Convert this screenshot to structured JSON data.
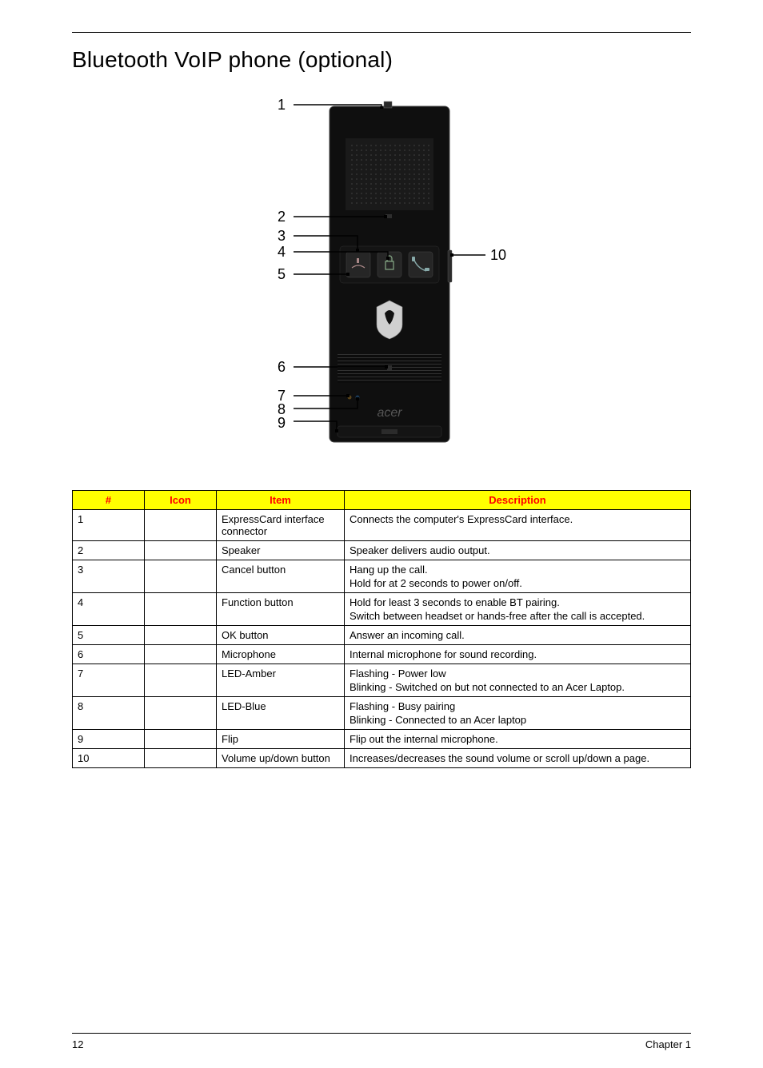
{
  "page_title": "Bluetooth VoIP phone (optional)",
  "footer": {
    "page_number": "12",
    "chapter": "Chapter 1"
  },
  "diagram": {
    "labels": [
      "1",
      "2",
      "3",
      "4",
      "5",
      "6",
      "7",
      "8",
      "9"
    ],
    "right_label": "10",
    "colors": {
      "device_body": "#0f0f0f",
      "device_border": "#404040",
      "speaker_fill": "#1a1a1a",
      "button_fill": "#262626",
      "badge_fill": "#d0d0d0",
      "badge_stroke": "#888888",
      "logo_text": "#555555",
      "line": "#000000",
      "label_text": "#000000"
    },
    "label_font_size": 18
  },
  "table": {
    "headers": {
      "num": "#",
      "icon": "Icon",
      "item": "Item",
      "desc": "Description"
    },
    "rows": [
      {
        "num": "1",
        "item": "ExpressCard interface connector",
        "desc": [
          "Connects the computer's ExpressCard interface."
        ]
      },
      {
        "num": "2",
        "item": "Speaker",
        "desc": [
          "Speaker delivers audio output."
        ]
      },
      {
        "num": "3",
        "item": "Cancel button",
        "desc": [
          "Hang up the call.",
          "Hold for at 2 seconds to power on/off."
        ]
      },
      {
        "num": "4",
        "item": "Function button",
        "desc": [
          "Hold for least 3 seconds to enable BT pairing.",
          "Switch between headset or hands-free after the call is accepted."
        ]
      },
      {
        "num": "5",
        "item": "OK button",
        "desc": [
          "Answer an incoming call."
        ]
      },
      {
        "num": "6",
        "item": "Microphone",
        "desc": [
          "Internal microphone for sound recording."
        ]
      },
      {
        "num": "7",
        "item": "LED-Amber",
        "desc": [
          "Flashing - Power low",
          "Blinking - Switched on but not connected to an Acer Laptop."
        ]
      },
      {
        "num": "8",
        "item": "LED-Blue",
        "desc": [
          "Flashing - Busy pairing",
          "Blinking - Connected to an Acer laptop"
        ]
      },
      {
        "num": "9",
        "item": "Flip",
        "desc": [
          "Flip out the internal microphone."
        ]
      },
      {
        "num": "10",
        "item": "Volume up/down button",
        "desc": [
          "Increases/decreases the sound volume or scroll up/down a page."
        ]
      }
    ]
  }
}
